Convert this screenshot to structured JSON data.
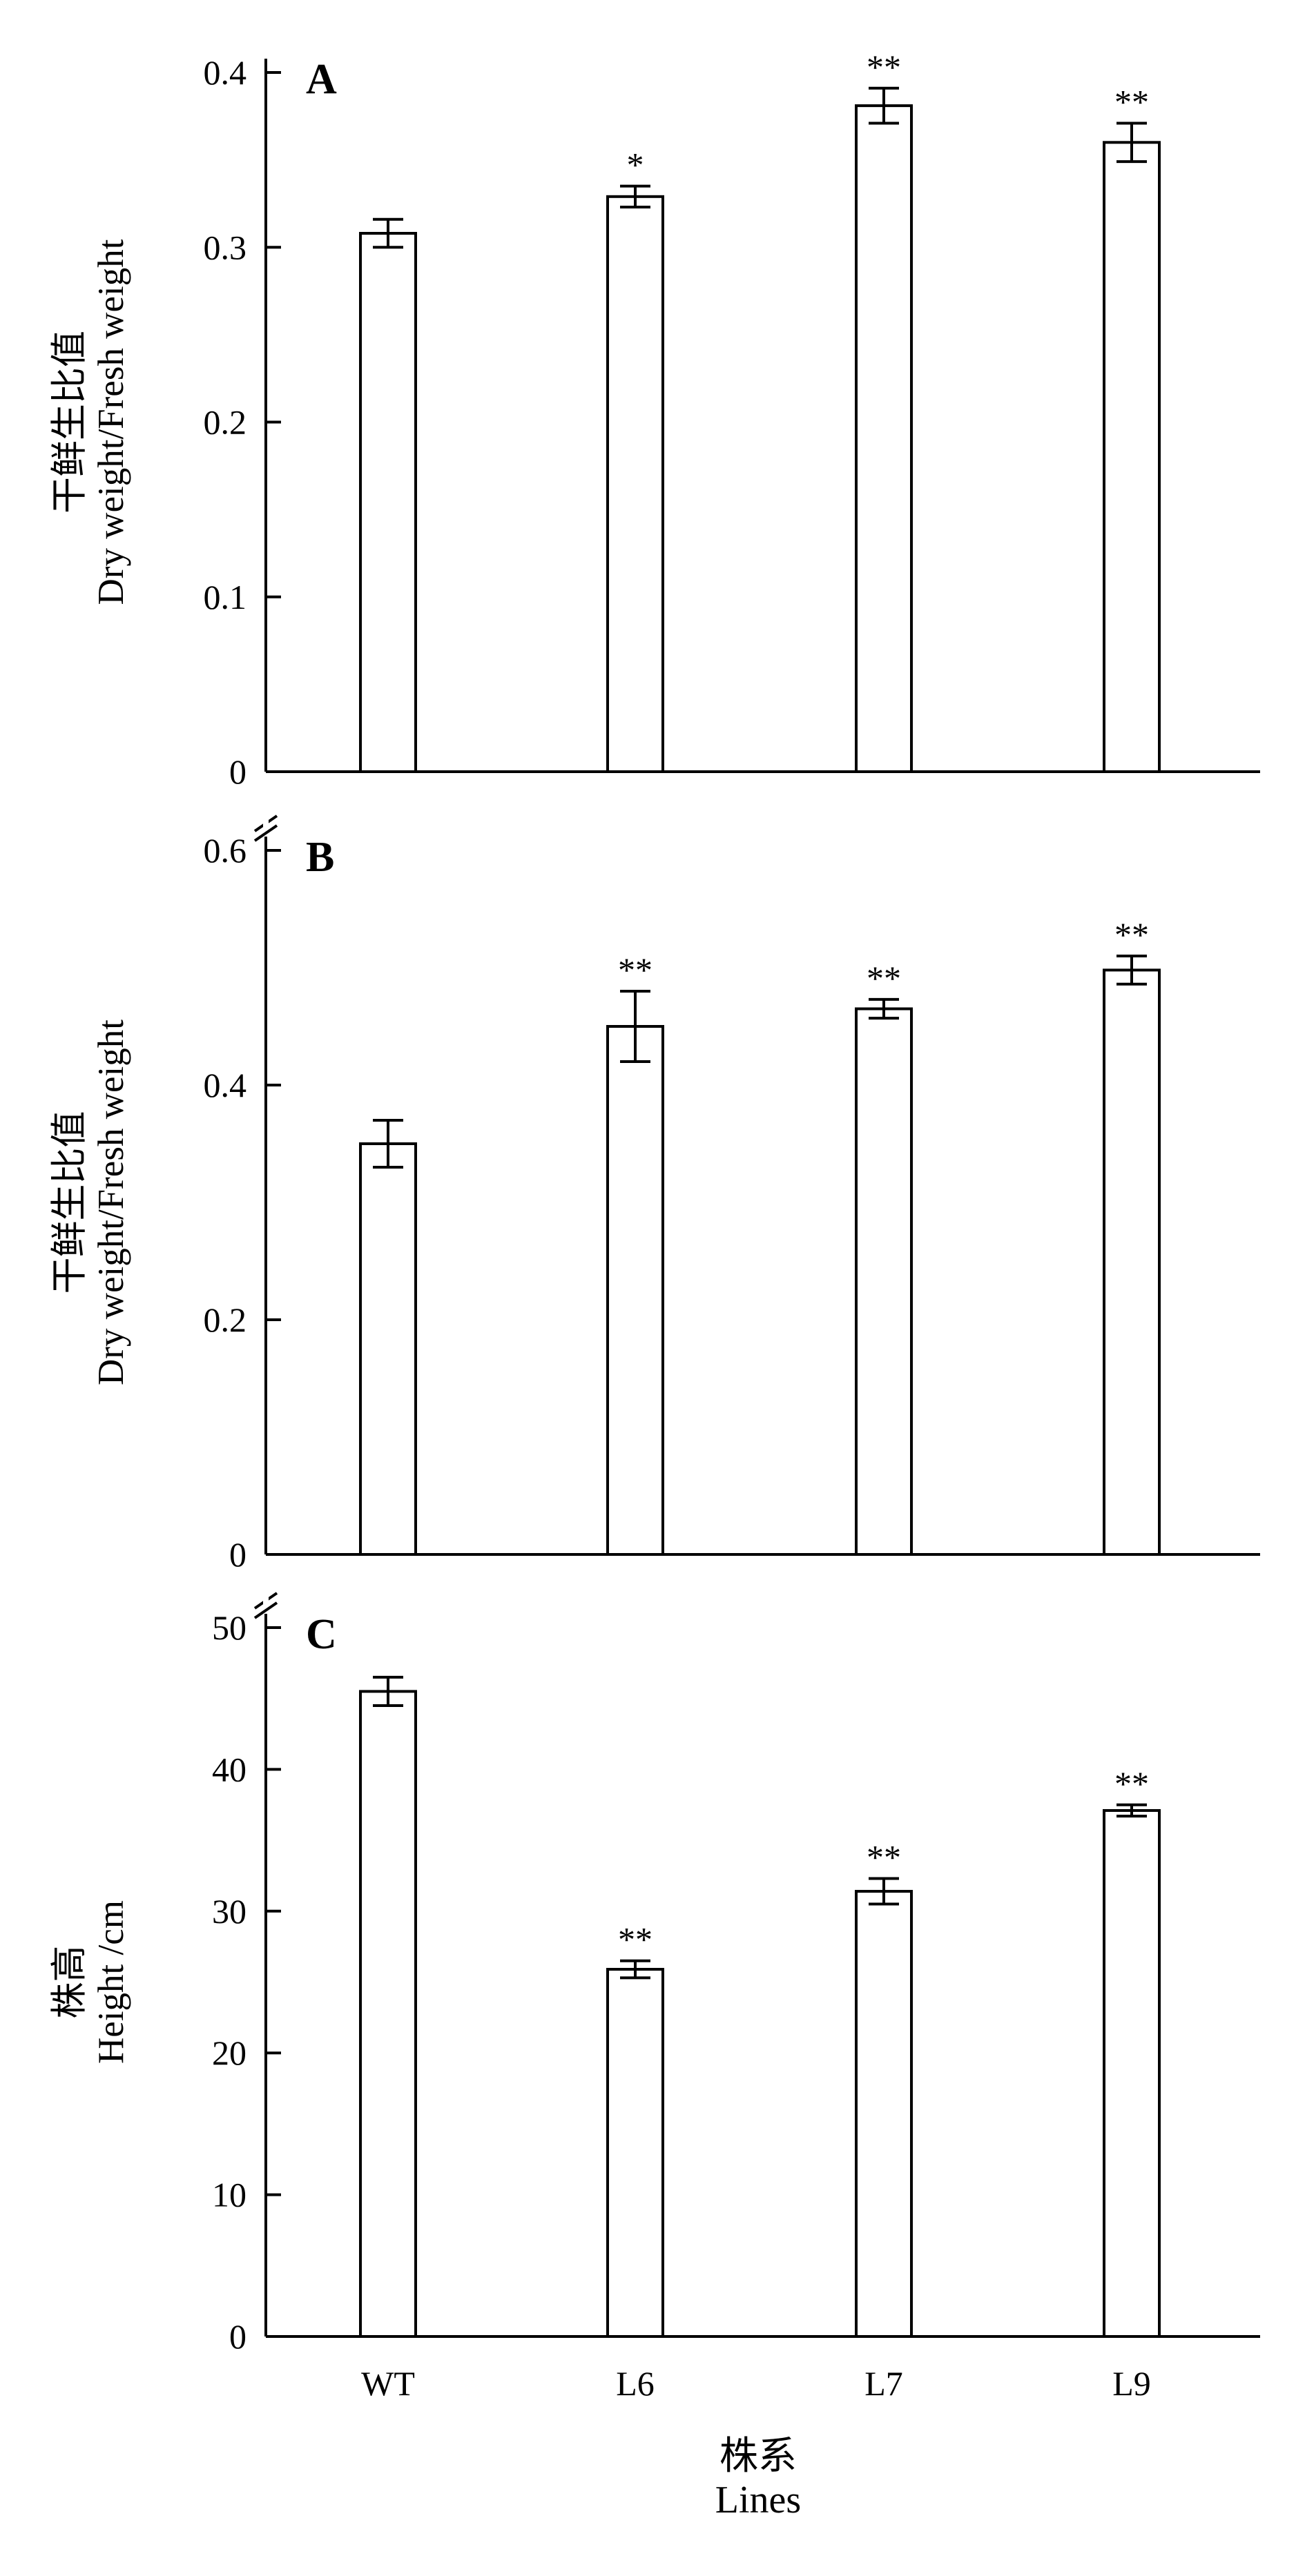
{
  "chart_data": [
    {
      "type": "bar",
      "panel": "A",
      "ylabel_cn": "干鲜生比值",
      "ylabel_en": "Dry weight/Fresh weight",
      "ylim": [
        0,
        0.4
      ],
      "yticks": [
        0,
        0.1,
        0.2,
        0.3,
        0.4
      ],
      "ytick_labels": [
        "0",
        "0.1",
        "0.2",
        "0.3",
        "0.4"
      ],
      "categories": [
        "WT",
        "L6",
        "L7",
        "L9"
      ],
      "values": [
        0.308,
        0.329,
        0.381,
        0.36
      ],
      "errors": [
        0.008,
        0.006,
        0.01,
        0.011
      ],
      "significance": [
        "",
        "*",
        "**",
        "**"
      ],
      "axis_break": false
    },
    {
      "type": "bar",
      "panel": "B",
      "ylabel_cn": "干鲜生比值",
      "ylabel_en": "Dry weight/Fresh weight",
      "ylim": [
        0,
        0.6
      ],
      "yticks": [
        0,
        0.2,
        0.4,
        0.6
      ],
      "ytick_labels": [
        "0",
        "0.2",
        "0.4",
        "0.6"
      ],
      "categories": [
        "WT",
        "L6",
        "L7",
        "L9"
      ],
      "values": [
        0.35,
        0.45,
        0.465,
        0.498
      ],
      "errors": [
        0.02,
        0.03,
        0.008,
        0.012
      ],
      "significance": [
        "",
        "**",
        "**",
        "**"
      ],
      "axis_break": true
    },
    {
      "type": "bar",
      "panel": "C",
      "ylabel_cn": "株高",
      "ylabel_en": "Height /cm",
      "ylim": [
        0,
        50
      ],
      "yticks": [
        0,
        10,
        20,
        30,
        40,
        50
      ],
      "ytick_labels": [
        "0",
        "10",
        "20",
        "30",
        "40",
        "50"
      ],
      "categories": [
        "WT",
        "L6",
        "L7",
        "L9"
      ],
      "values": [
        45.5,
        25.9,
        31.4,
        37.1
      ],
      "errors": [
        1.0,
        0.6,
        0.9,
        0.4
      ],
      "significance": [
        "",
        "**",
        "**",
        "**"
      ],
      "axis_break": true
    }
  ],
  "xlabel_cn": "株系",
  "xlabel_en": "Lines"
}
